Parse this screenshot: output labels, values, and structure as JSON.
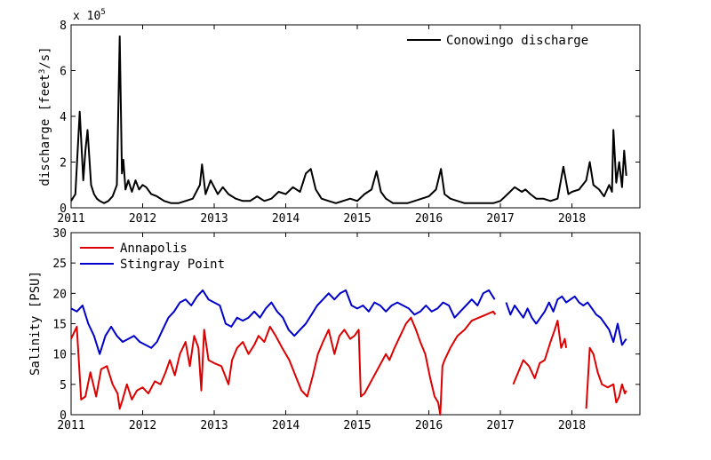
{
  "chart_data": [
    {
      "type": "line",
      "title": "",
      "xlabel": "",
      "ylabel": "discharge [feet³/s]",
      "ylabel_main": "discharge [feet",
      "ylabel_sup": "3",
      "ylabel_tail": "/s]",
      "multiplier_base": "x 10",
      "multiplier_exp": "5",
      "xlim": [
        2011,
        2018.95
      ],
      "ylim": [
        0,
        8
      ],
      "x_ticks": [
        2011,
        2012,
        2013,
        2014,
        2015,
        2016,
        2017,
        2018
      ],
      "x_tick_labels": [
        "2011",
        "2012",
        "2013",
        "2014",
        "2015",
        "2016",
        "2017",
        "2018"
      ],
      "y_ticks": [
        0,
        2,
        4,
        6,
        8
      ],
      "y_tick_labels": [
        "0",
        "2",
        "4",
        "6",
        "8"
      ],
      "grid": false,
      "legend_position": "top-right",
      "series": [
        {
          "name": "Conowingo discharge",
          "color": "#000000",
          "x": [
            2011.0,
            2011.06,
            2011.12,
            2011.17,
            2011.2,
            2011.23,
            2011.28,
            2011.32,
            2011.36,
            2011.4,
            2011.46,
            2011.52,
            2011.58,
            2011.64,
            2011.68,
            2011.71,
            2011.73,
            2011.76,
            2011.8,
            2011.85,
            2011.9,
            2011.95,
            2012.0,
            2012.05,
            2012.12,
            2012.2,
            2012.3,
            2012.4,
            2012.5,
            2012.6,
            2012.7,
            2012.8,
            2012.83,
            2012.88,
            2012.95,
            2013.05,
            2013.12,
            2013.2,
            2013.3,
            2013.4,
            2013.5,
            2013.6,
            2013.7,
            2013.8,
            2013.9,
            2014.0,
            2014.1,
            2014.2,
            2014.28,
            2014.35,
            2014.42,
            2014.5,
            2014.6,
            2014.7,
            2014.8,
            2014.9,
            2015.0,
            2015.1,
            2015.2,
            2015.27,
            2015.33,
            2015.4,
            2015.5,
            2015.6,
            2015.7,
            2015.8,
            2015.9,
            2016.0,
            2016.1,
            2016.17,
            2016.22,
            2016.3,
            2016.4,
            2016.5,
            2016.6,
            2016.7,
            2016.8,
            2016.9,
            2017.0,
            2017.1,
            2017.2,
            2017.3,
            2017.35,
            2017.42,
            2017.5,
            2017.6,
            2017.7,
            2017.8,
            2017.88,
            2017.95,
            2018.0,
            2018.1,
            2018.2,
            2018.25,
            2018.3,
            2018.38,
            2018.45,
            2018.52,
            2018.56,
            2018.58,
            2018.62,
            2018.66,
            2018.7,
            2018.73,
            2018.76
          ],
          "values": [
            0.3,
            0.6,
            4.2,
            1.2,
            2.5,
            3.4,
            1.0,
            0.6,
            0.4,
            0.3,
            0.2,
            0.3,
            0.5,
            1.0,
            7.5,
            1.5,
            2.1,
            0.8,
            1.2,
            0.7,
            1.2,
            0.8,
            1.0,
            0.9,
            0.6,
            0.5,
            0.3,
            0.2,
            0.2,
            0.3,
            0.4,
            1.0,
            1.9,
            0.6,
            1.2,
            0.6,
            0.9,
            0.6,
            0.4,
            0.3,
            0.3,
            0.5,
            0.3,
            0.4,
            0.7,
            0.6,
            0.9,
            0.7,
            1.5,
            1.7,
            0.8,
            0.4,
            0.3,
            0.2,
            0.3,
            0.4,
            0.3,
            0.6,
            0.8,
            1.6,
            0.7,
            0.4,
            0.2,
            0.2,
            0.2,
            0.3,
            0.4,
            0.5,
            0.8,
            1.7,
            0.6,
            0.4,
            0.3,
            0.2,
            0.2,
            0.2,
            0.2,
            0.2,
            0.3,
            0.6,
            0.9,
            0.7,
            0.8,
            0.6,
            0.4,
            0.4,
            0.3,
            0.4,
            1.8,
            0.6,
            0.7,
            0.8,
            1.2,
            2.0,
            1.0,
            0.8,
            0.5,
            1.0,
            0.7,
            3.4,
            1.1,
            2.0,
            0.9,
            2.5,
            1.4
          ]
        }
      ]
    },
    {
      "type": "line",
      "title": "",
      "xlabel": "",
      "ylabel": "Salinity [PSU]",
      "xlim": [
        2011,
        2018.95
      ],
      "ylim": [
        0,
        30
      ],
      "x_ticks": [
        2011,
        2012,
        2013,
        2014,
        2015,
        2016,
        2017,
        2018
      ],
      "x_tick_labels": [
        "2011",
        "2012",
        "2013",
        "2014",
        "2015",
        "2016",
        "2017",
        "2018"
      ],
      "y_ticks": [
        0,
        5,
        10,
        15,
        20,
        25,
        30
      ],
      "y_tick_labels": [
        "0",
        "5",
        "10",
        "15",
        "20",
        "25",
        "30"
      ],
      "grid": false,
      "legend_position": "top-left",
      "series": [
        {
          "name": "Annapolis",
          "color": "#dd0000",
          "segments": [
            {
              "x": [
                2011.0,
                2011.08,
                2011.14,
                2011.2,
                2011.27,
                2011.35,
                2011.42,
                2011.5,
                2011.58,
                2011.65,
                2011.68,
                2011.72,
                2011.78,
                2011.85,
                2011.92,
                2012.0,
                2012.08,
                2012.17,
                2012.25,
                2012.32,
                2012.38,
                2012.45,
                2012.52,
                2012.6,
                2012.66,
                2012.72,
                2012.78,
                2012.82,
                2012.86,
                2012.92,
                2013.0,
                2013.1,
                2013.2,
                2013.25,
                2013.32,
                2013.4,
                2013.48,
                2013.56,
                2013.62,
                2013.7,
                2013.78,
                2013.86,
                2013.95,
                2014.05,
                2014.15,
                2014.22,
                2014.3,
                2014.38,
                2014.45,
                2014.52,
                2014.6,
                2014.68,
                2014.75,
                2014.82,
                2014.9,
                2014.96,
                2015.02,
                2015.05,
                2015.1,
                2015.4,
                2015.45,
                2015.52,
                2015.6,
                2015.68,
                2015.75,
                2015.82,
                2015.88,
                2015.95,
                2016.02,
                2016.08,
                2016.13,
                2016.16,
                2016.19,
                2016.22,
                2016.3,
                2016.4,
                2016.5,
                2016.6,
                2016.7,
                2016.8,
                2016.9,
                2016.93
              ],
              "values": [
                12.5,
                14.5,
                2.5,
                3.0,
                7.0,
                3.0,
                7.5,
                8.0,
                5.0,
                3.5,
                1.0,
                2.5,
                5.0,
                2.5,
                4.0,
                4.5,
                3.5,
                5.5,
                5.0,
                7.0,
                9.0,
                6.5,
                10.0,
                12.0,
                8.0,
                13.0,
                11.0,
                4.0,
                14.0,
                9.0,
                8.5,
                8.0,
                5.0,
                9.0,
                11.0,
                12.0,
                10.0,
                11.5,
                13.0,
                12.0,
                14.5,
                13.0,
                11.0,
                9.0,
                6.0,
                4.0,
                3.0,
                6.5,
                10.0,
                12.0,
                14.0,
                10.0,
                13.0,
                14.0,
                12.5,
                13.0,
                14.0,
                3.0,
                3.5,
                10.0,
                9.0,
                11.0,
                13.0,
                15.0,
                16.0,
                14.0,
                12.0,
                10.0,
                6.0,
                3.0,
                2.0,
                0.0,
                8.0,
                9.0,
                11.0,
                13.0,
                14.0,
                15.5,
                16.0,
                16.5,
                17.0,
                16.5
              ]
            },
            {
              "x": [
                2017.18,
                2017.25,
                2017.32,
                2017.4,
                2017.48,
                2017.55,
                2017.62,
                2017.7,
                2017.76,
                2017.8,
                2017.85,
                2017.9,
                2017.92
              ],
              "values": [
                5.0,
                7.0,
                9.0,
                8.0,
                6.0,
                8.5,
                9.0,
                12.0,
                14.0,
                15.5,
                11.0,
                12.5,
                11.0
              ]
            },
            {
              "x": [
                2018.2,
                2018.25,
                2018.3,
                2018.36,
                2018.42,
                2018.5,
                2018.58,
                2018.62,
                2018.66,
                2018.7,
                2018.74,
                2018.76
              ],
              "values": [
                1.0,
                11.0,
                10.0,
                7.0,
                5.0,
                4.5,
                5.0,
                2.0,
                3.0,
                5.0,
                3.5,
                4.0
              ]
            }
          ]
        },
        {
          "name": "Stingray Point",
          "color": "#0000cc",
          "segments": [
            {
              "x": [
                2011.0,
                2011.08,
                2011.16,
                2011.24,
                2011.32,
                2011.4,
                2011.48,
                2011.56,
                2011.64,
                2011.72,
                2011.8,
                2011.88,
                2011.96,
                2012.04,
                2012.12,
                2012.2,
                2012.28,
                2012.36,
                2012.44,
                2012.52,
                2012.6,
                2012.68,
                2012.76,
                2012.84,
                2012.92,
                2013.0,
                2013.08,
                2013.16,
                2013.24,
                2013.32,
                2013.4,
                2013.48,
                2013.56,
                2013.64,
                2013.72,
                2013.8,
                2013.88,
                2013.96,
                2014.04,
                2014.12,
                2014.2,
                2014.28,
                2014.36,
                2014.44,
                2014.52,
                2014.6,
                2014.68,
                2014.76,
                2014.84,
                2014.92,
                2015.0,
                2015.08,
                2015.16,
                2015.24,
                2015.32,
                2015.4,
                2015.48,
                2015.56,
                2015.64,
                2015.72,
                2015.8,
                2015.88,
                2015.96,
                2016.04,
                2016.12,
                2016.2,
                2016.28,
                2016.36,
                2016.44,
                2016.52,
                2016.6,
                2016.68,
                2016.76,
                2016.84,
                2016.92
              ],
              "values": [
                17.5,
                17.0,
                18.0,
                15.0,
                13.0,
                10.0,
                13.0,
                14.5,
                13.0,
                12.0,
                12.5,
                13.0,
                12.0,
                11.5,
                11.0,
                12.0,
                14.0,
                16.0,
                17.0,
                18.5,
                19.0,
                18.0,
                19.5,
                20.5,
                19.0,
                18.5,
                18.0,
                15.0,
                14.5,
                16.0,
                15.5,
                16.0,
                17.0,
                16.0,
                17.5,
                18.5,
                17.0,
                16.0,
                14.0,
                13.0,
                14.0,
                15.0,
                16.5,
                18.0,
                19.0,
                20.0,
                19.0,
                20.0,
                20.5,
                18.0,
                17.5,
                18.0,
                17.0,
                18.5,
                18.0,
                17.0,
                18.0,
                18.5,
                18.0,
                17.5,
                16.5,
                17.0,
                18.0,
                17.0,
                17.5,
                18.5,
                18.0,
                16.0,
                17.0,
                18.0,
                19.0,
                18.0,
                20.0,
                20.5,
                19.0
              ]
            },
            {
              "x": [
                2017.08,
                2017.14,
                2017.2,
                2017.26,
                2017.32,
                2017.38,
                2017.44,
                2017.5,
                2017.56,
                2017.62,
                2017.68,
                2017.74,
                2017.8,
                2017.86,
                2017.92,
                2017.98,
                2018.04,
                2018.1,
                2018.16,
                2018.22,
                2018.28,
                2018.34,
                2018.4,
                2018.46,
                2018.52,
                2018.58,
                2018.64,
                2018.7,
                2018.76
              ],
              "values": [
                18.5,
                16.5,
                18.0,
                17.0,
                16.0,
                17.5,
                16.0,
                15.0,
                16.0,
                17.0,
                18.5,
                17.0,
                19.0,
                19.5,
                18.5,
                19.0,
                19.5,
                18.5,
                18.0,
                18.5,
                17.5,
                16.5,
                16.0,
                15.0,
                14.0,
                12.0,
                15.0,
                11.5,
                12.5
              ]
            }
          ]
        }
      ]
    }
  ]
}
